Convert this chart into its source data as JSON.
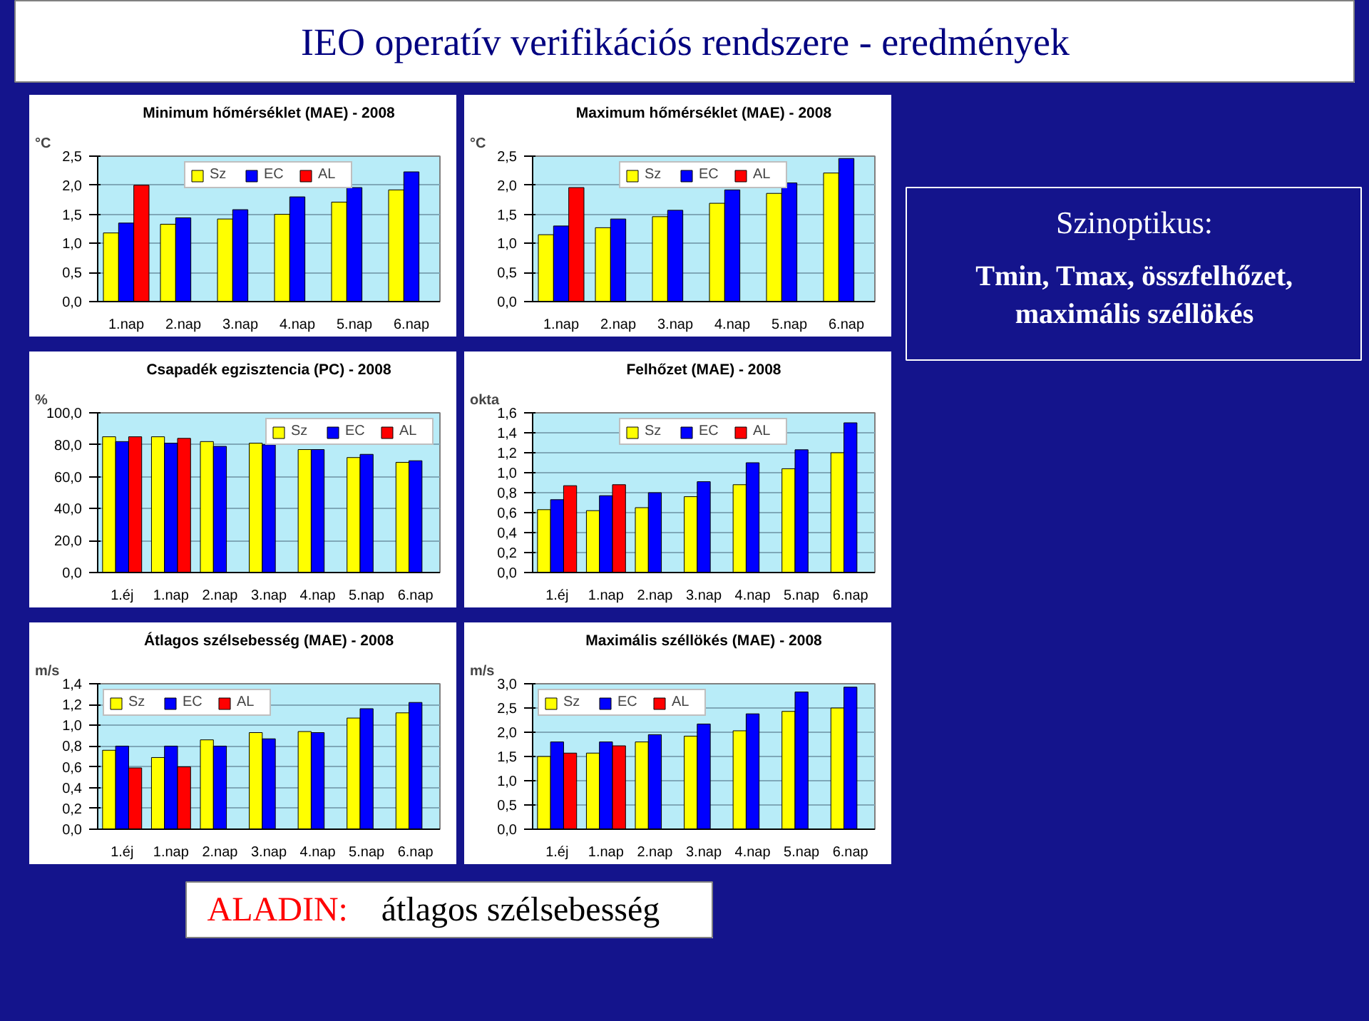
{
  "chart_data": [
    {
      "type": "other",
      "title": "IEO operatív verifikációs rendszere - eredmények"
    },
    {
      "type": "bar",
      "title": "Minimum hőmérséklet (MAE) - 2008",
      "ylabel": "°C",
      "categories": [
        "1.nap",
        "2.nap",
        "3.nap",
        "4.nap",
        "5.nap",
        "6.nap"
      ],
      "series": [
        {
          "name": "Sz",
          "color": "#ffff00",
          "values": [
            1.18,
            1.33,
            1.42,
            1.5,
            1.71,
            1.92
          ]
        },
        {
          "name": "EC",
          "color": "#0000ff",
          "values": [
            1.35,
            1.44,
            1.58,
            1.8,
            1.96,
            2.23
          ]
        },
        {
          "name": "AL",
          "color": "#ff0000",
          "values": [
            2.0,
            null,
            null,
            null,
            null,
            null
          ]
        }
      ],
      "ylim": [
        0,
        2.5
      ],
      "yticks": [
        {
          "value": 0,
          "label": "0,0"
        },
        {
          "value": 0.5,
          "label": "0,5"
        },
        {
          "value": 1,
          "label": "1,0"
        },
        {
          "value": 1.5,
          "label": "1,5"
        },
        {
          "value": 2,
          "label": "2,0"
        },
        {
          "value": 2.5,
          "label": "2,5"
        }
      ],
      "grid": "y",
      "legend": "top"
    },
    {
      "type": "bar",
      "title": "Maximum hőmérséklet (MAE) - 2008",
      "ylabel": "°C",
      "categories": [
        "1.nap",
        "2.nap",
        "3.nap",
        "4.nap",
        "5.nap",
        "6.nap"
      ],
      "series": [
        {
          "name": "Sz",
          "color": "#ffff00",
          "values": [
            1.15,
            1.27,
            1.46,
            1.69,
            1.86,
            2.21
          ]
        },
        {
          "name": "EC",
          "color": "#0000ff",
          "values": [
            1.3,
            1.42,
            1.57,
            1.92,
            2.04,
            2.46
          ]
        },
        {
          "name": "AL",
          "color": "#ff0000",
          "values": [
            1.96,
            null,
            null,
            null,
            null,
            null
          ]
        }
      ],
      "ylim": [
        0,
        2.5
      ],
      "yticks": [
        {
          "value": 0,
          "label": "0,0"
        },
        {
          "value": 0.5,
          "label": "0,5"
        },
        {
          "value": 1,
          "label": "1,0"
        },
        {
          "value": 1.5,
          "label": "1,5"
        },
        {
          "value": 2,
          "label": "2,0"
        },
        {
          "value": 2.5,
          "label": "2,5"
        }
      ],
      "grid": "y",
      "legend": "top"
    },
    {
      "type": "other",
      "title": "Szinoptikus:",
      "annotations": [
        "Tmin, Tmax, összfelhőzet,\nmaximális széllökés"
      ]
    },
    {
      "type": "bar",
      "title": "Csapadék egzisztencia (PC) - 2008",
      "ylabel": "%",
      "categories": [
        "1.éj",
        "1.nap",
        "2.nap",
        "3.nap",
        "4.nap",
        "5.nap",
        "6.nap"
      ],
      "series": [
        {
          "name": "Sz",
          "color": "#ffff00",
          "values": [
            85,
            85,
            82,
            81,
            77,
            72,
            69
          ]
        },
        {
          "name": "EC",
          "color": "#0000ff",
          "values": [
            82,
            81,
            79,
            80,
            77,
            74,
            70
          ]
        },
        {
          "name": "AL",
          "color": "#ff0000",
          "values": [
            85,
            84,
            null,
            null,
            null,
            null,
            null
          ]
        }
      ],
      "ylim": [
        0,
        100
      ],
      "yticks": [
        {
          "value": 0,
          "label": "0,0"
        },
        {
          "value": 20,
          "label": "20,0"
        },
        {
          "value": 40,
          "label": "40,0"
        },
        {
          "value": 60,
          "label": "60,0"
        },
        {
          "value": 80,
          "label": "80,0"
        },
        {
          "value": 100,
          "label": "100,0"
        }
      ],
      "grid": "y",
      "legend": "top right"
    },
    {
      "type": "bar",
      "title": "Felhőzet (MAE) - 2008",
      "ylabel": "okta",
      "categories": [
        "1.éj",
        "1.nap",
        "2.nap",
        "3.nap",
        "4.nap",
        "5.nap",
        "6.nap"
      ],
      "series": [
        {
          "name": "Sz",
          "color": "#ffff00",
          "values": [
            0.63,
            0.62,
            0.65,
            0.76,
            0.88,
            1.04,
            1.2
          ]
        },
        {
          "name": "EC",
          "color": "#0000ff",
          "values": [
            0.73,
            0.77,
            0.8,
            0.91,
            1.1,
            1.23,
            1.5
          ]
        },
        {
          "name": "AL",
          "color": "#ff0000",
          "values": [
            0.87,
            0.88,
            null,
            null,
            null,
            null,
            null
          ]
        }
      ],
      "ylim": [
        0,
        1.6
      ],
      "yticks": [
        {
          "value": 0,
          "label": "0,0"
        },
        {
          "value": 0.2,
          "label": "0,2"
        },
        {
          "value": 0.4,
          "label": "0,4"
        },
        {
          "value": 0.6,
          "label": "0,6"
        },
        {
          "value": 0.8,
          "label": "0,8"
        },
        {
          "value": 1,
          "label": "1,0"
        },
        {
          "value": 1.2,
          "label": "1,2"
        },
        {
          "value": 1.4,
          "label": "1,4"
        },
        {
          "value": 1.6,
          "label": "1,6"
        }
      ],
      "grid": "y",
      "legend": "top"
    },
    {
      "type": "bar",
      "title": "Átlagos szélsebesség (MAE) - 2008",
      "ylabel": "m/s",
      "categories": [
        "1.éj",
        "1.nap",
        "2.nap",
        "3.nap",
        "4.nap",
        "5.nap",
        "6.nap"
      ],
      "series": [
        {
          "name": "Sz",
          "color": "#ffff00",
          "values": [
            0.76,
            0.69,
            0.86,
            0.93,
            0.94,
            1.07,
            1.12
          ]
        },
        {
          "name": "EC",
          "color": "#0000ff",
          "values": [
            0.8,
            0.8,
            0.8,
            0.87,
            0.93,
            1.16,
            1.22
          ]
        },
        {
          "name": "AL",
          "color": "#ff0000",
          "values": [
            0.59,
            0.6,
            null,
            null,
            null,
            null,
            null
          ]
        }
      ],
      "ylim": [
        0,
        1.4
      ],
      "yticks": [
        {
          "value": 0,
          "label": "0,0"
        },
        {
          "value": 0.2,
          "label": "0,2"
        },
        {
          "value": 0.4,
          "label": "0,4"
        },
        {
          "value": 0.6,
          "label": "0,6"
        },
        {
          "value": 0.8,
          "label": "0,8"
        },
        {
          "value": 1,
          "label": "1,0"
        },
        {
          "value": 1.2,
          "label": "1,2"
        },
        {
          "value": 1.4,
          "label": "1,4"
        }
      ],
      "grid": "y",
      "legend": "top left"
    },
    {
      "type": "bar",
      "title": "Maximális széllökés (MAE) - 2008",
      "ylabel": "m/s",
      "categories": [
        "1.éj",
        "1.nap",
        "2.nap",
        "3.nap",
        "4.nap",
        "5.nap",
        "6.nap"
      ],
      "series": [
        {
          "name": "Sz",
          "color": "#ffff00",
          "values": [
            1.5,
            1.57,
            1.8,
            1.92,
            2.03,
            2.43,
            2.5
          ]
        },
        {
          "name": "EC",
          "color": "#0000ff",
          "values": [
            1.8,
            1.8,
            1.95,
            2.17,
            2.38,
            2.83,
            2.93
          ]
        },
        {
          "name": "AL",
          "color": "#ff0000",
          "values": [
            1.57,
            1.72,
            null,
            null,
            null,
            null,
            null
          ]
        }
      ],
      "ylim": [
        0,
        3
      ],
      "yticks": [
        {
          "value": 0,
          "label": "0,0"
        },
        {
          "value": 0.5,
          "label": "0,5"
        },
        {
          "value": 1,
          "label": "1,0"
        },
        {
          "value": 1.5,
          "label": "1,5"
        },
        {
          "value": 2,
          "label": "2,0"
        },
        {
          "value": 2.5,
          "label": "2,5"
        },
        {
          "value": 3,
          "label": "3,0"
        }
      ],
      "grid": "y",
      "legend": "top left"
    },
    {
      "type": "other",
      "annotations": [
        "ALADIN:",
        "átlagos szélsebesség"
      ]
    }
  ]
}
